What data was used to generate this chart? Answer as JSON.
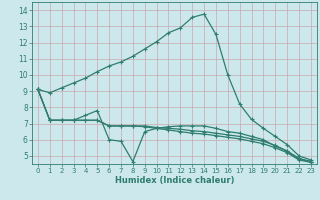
{
  "xlabel": "Humidex (Indice chaleur)",
  "bg_color": "#cde8ec",
  "line_color": "#2e7d6e",
  "grid_color": "#b8d8dc",
  "xlim": [
    -0.5,
    23.5
  ],
  "ylim": [
    4.5,
    14.5
  ],
  "yticks": [
    5,
    6,
    7,
    8,
    9,
    10,
    11,
    12,
    13,
    14
  ],
  "xticks": [
    0,
    1,
    2,
    3,
    4,
    5,
    6,
    7,
    8,
    9,
    10,
    11,
    12,
    13,
    14,
    15,
    16,
    17,
    18,
    19,
    20,
    21,
    22,
    23
  ],
  "series": [
    [
      9.1,
      8.9,
      9.2,
      9.5,
      9.8,
      10.2,
      10.55,
      10.8,
      11.15,
      11.6,
      12.05,
      12.6,
      12.9,
      13.55,
      13.75,
      12.5,
      10.0,
      8.2,
      7.25,
      6.7,
      6.2,
      5.7,
      5.0,
      4.75
    ],
    [
      9.1,
      7.2,
      7.2,
      7.2,
      7.5,
      7.8,
      6.0,
      5.9,
      4.65,
      6.5,
      6.7,
      6.8,
      6.85,
      6.85,
      6.85,
      6.7,
      6.5,
      6.4,
      6.2,
      6.0,
      5.6,
      5.3,
      4.8,
      4.65
    ],
    [
      9.1,
      7.2,
      7.2,
      7.2,
      7.2,
      7.2,
      6.85,
      6.85,
      6.85,
      6.85,
      6.75,
      6.7,
      6.65,
      6.55,
      6.5,
      6.4,
      6.3,
      6.2,
      6.05,
      5.9,
      5.65,
      5.3,
      4.85,
      4.65
    ],
    [
      9.1,
      7.2,
      7.2,
      7.2,
      7.2,
      7.2,
      6.85,
      6.85,
      6.85,
      6.8,
      6.7,
      6.6,
      6.5,
      6.4,
      6.35,
      6.25,
      6.15,
      6.05,
      5.9,
      5.75,
      5.5,
      5.2,
      4.75,
      4.6
    ]
  ]
}
